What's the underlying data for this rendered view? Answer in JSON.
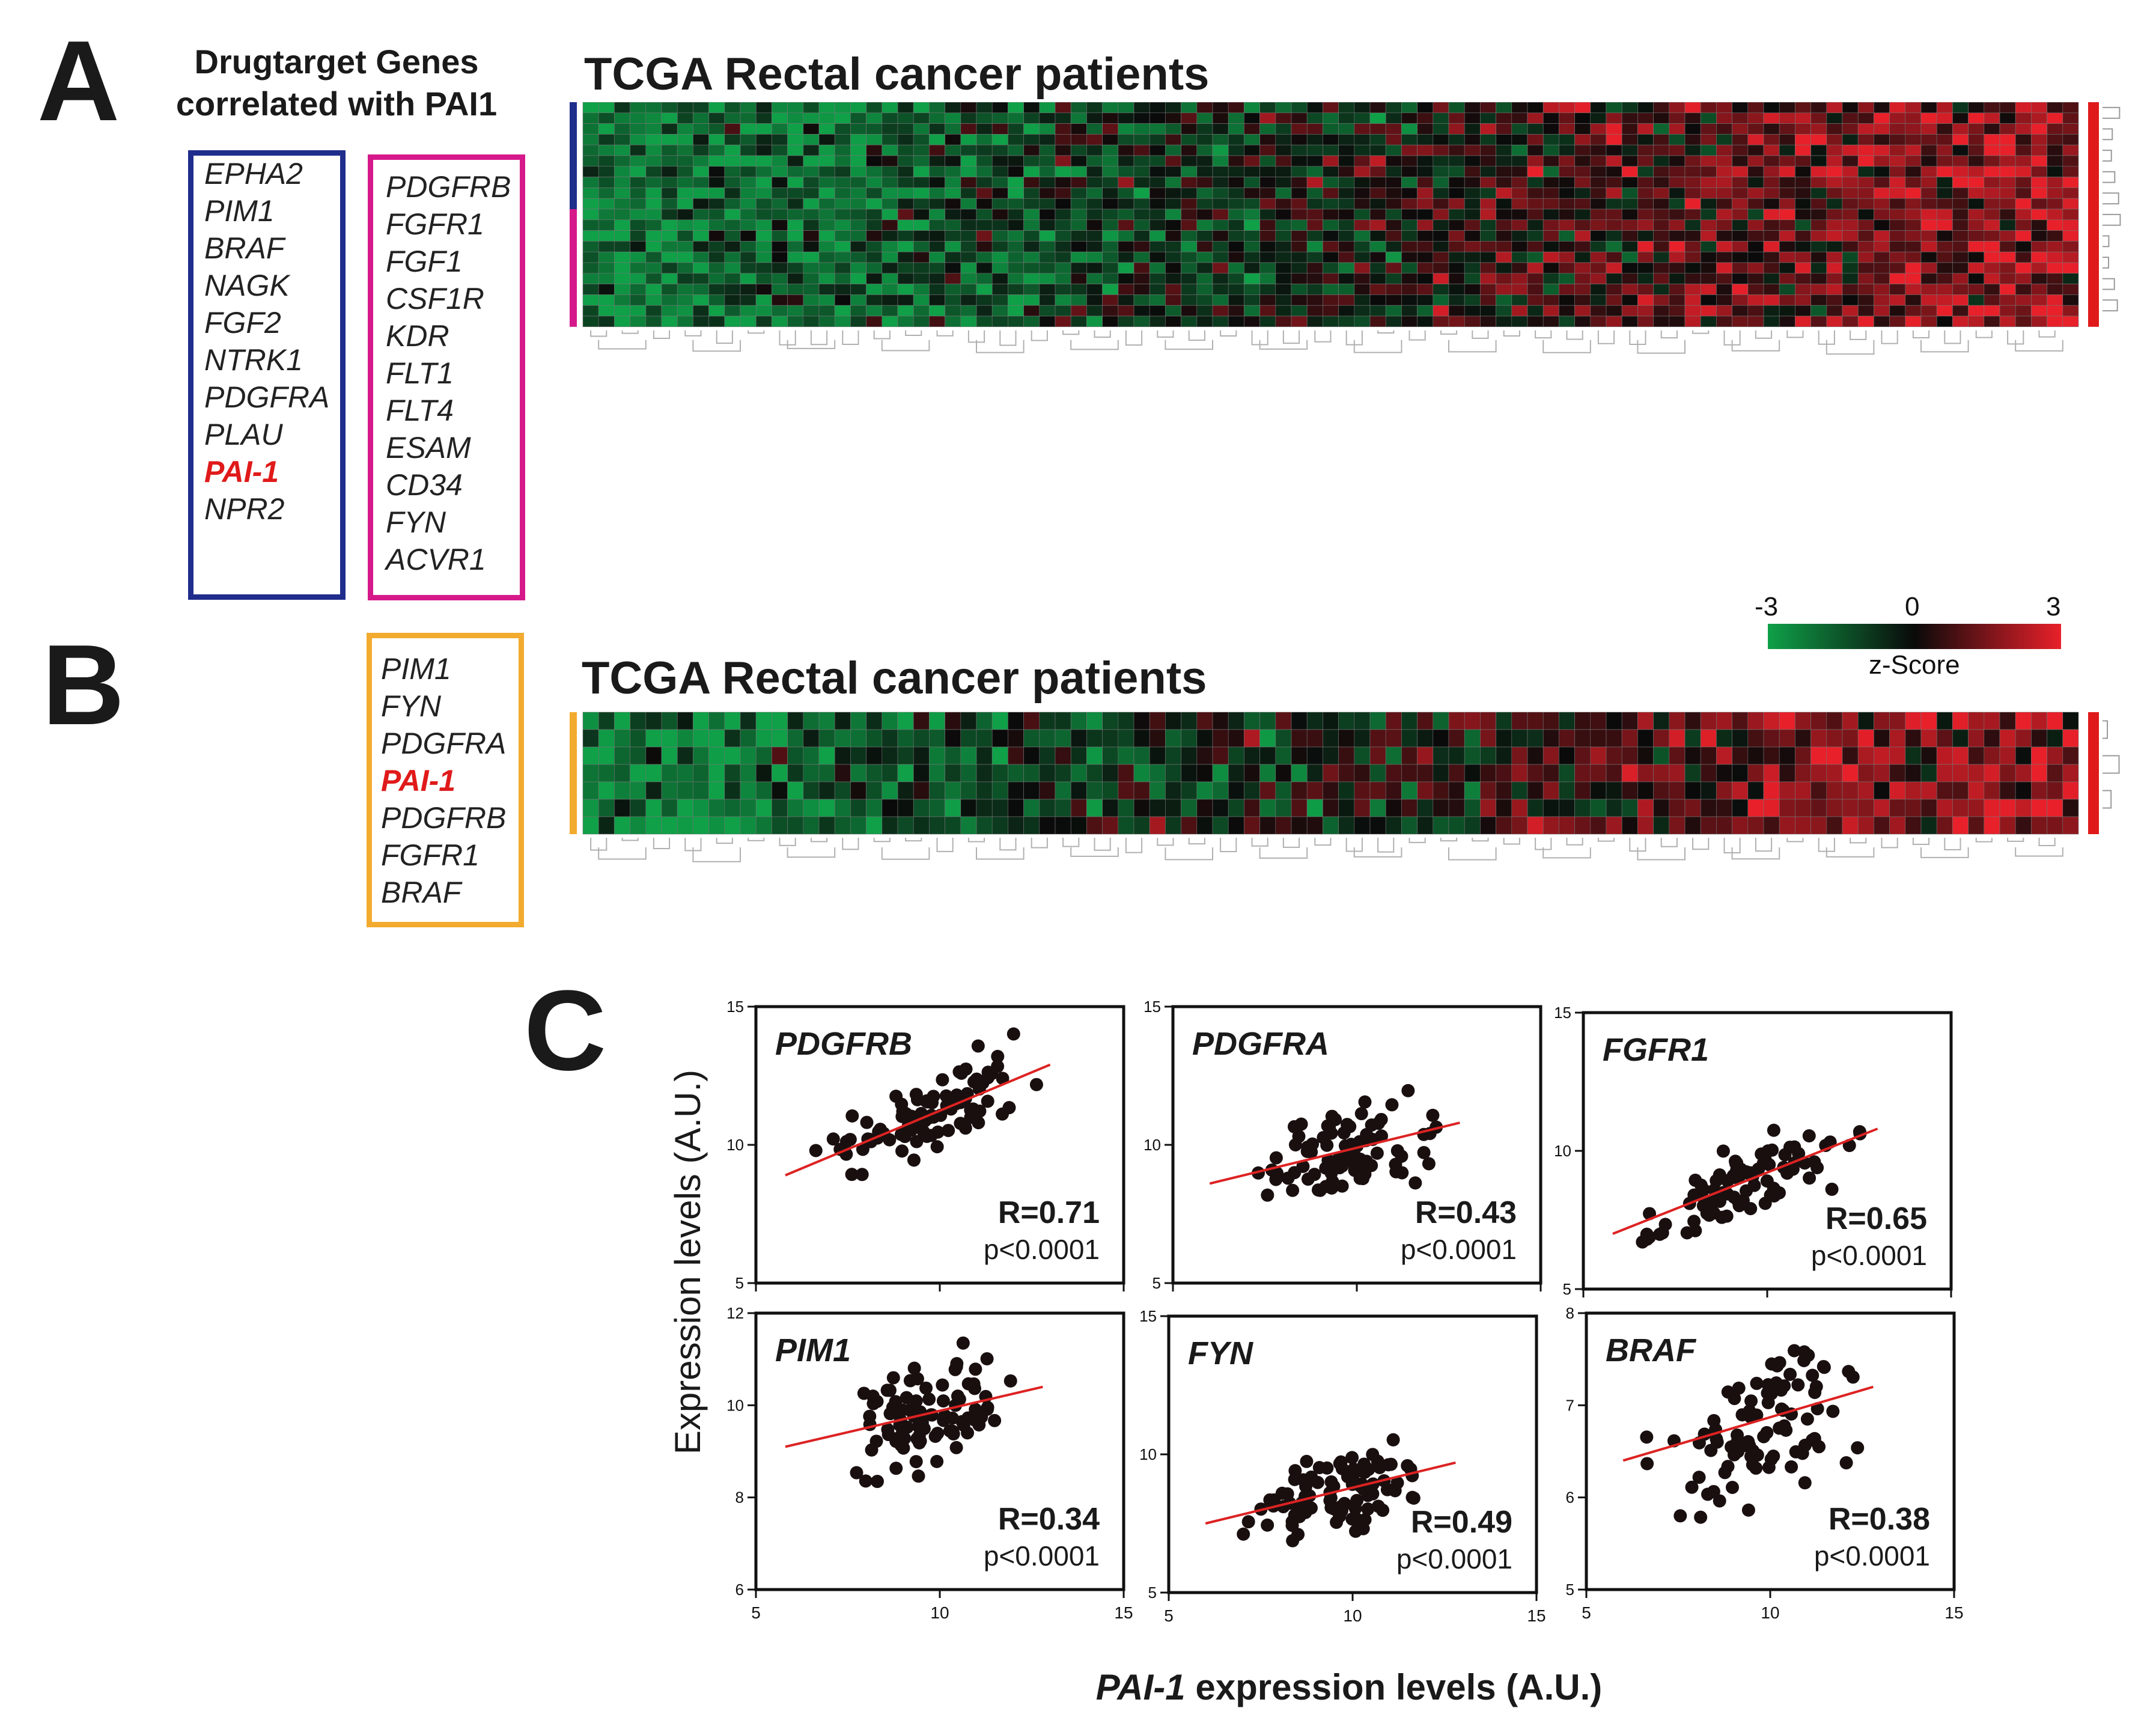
{
  "panelA": {
    "letter": "A",
    "header_line1": "Drugtarget Genes",
    "header_line2": "correlated  with PAI1",
    "blue_genes": [
      "EPHA2",
      "PIM1",
      "BRAF",
      "NAGK",
      "FGF2",
      "NTRK1",
      "PDGFRA",
      "PLAU",
      "PAI-1",
      "NPR2"
    ],
    "pink_genes": [
      "PDGFRB",
      "FGFR1",
      "FGF1",
      "CSF1R",
      "KDR",
      "FLT1",
      "FLT4",
      "ESAM",
      "CD34",
      "FYN",
      "ACVR1"
    ],
    "highlight_gene": "PAI-1",
    "heatmap_title": "TCGA Rectal cancer patients"
  },
  "panelB": {
    "letter": "B",
    "genes": [
      "PIM1",
      "FYN",
      "PDGFRA",
      "PAI-1",
      "PDGFRB",
      "FGFR1",
      "BRAF"
    ],
    "heatmap_title": "TCGA Rectal cancer patients"
  },
  "colorbar": {
    "min_label": "-3",
    "mid_label": "0",
    "max_label": "3",
    "title": "z-Score"
  },
  "colors": {
    "blue": "#1f2d8c",
    "pink": "#d6198a",
    "orange": "#f2ab2e",
    "red": "#e01a1a",
    "heat_low": "#0fa048",
    "heat_mid": "#0a0a0a",
    "heat_high": "#e8202a",
    "fit_line": "#dd2222"
  },
  "panelC": {
    "letter": "C",
    "ylabel": "Expression levels (A.U.)",
    "xlabel_gene": "PAI-1",
    "xlabel_rest": " expression levels (A.U.)"
  },
  "chart_data": [
    {
      "type": "scatter",
      "title": "PDGFRB",
      "xlabel": "PAI-1 expression levels (A.U.)",
      "ylabel": "Expression levels (A.U.)",
      "xlim": [
        5,
        15
      ],
      "ylim": [
        5,
        15
      ],
      "xticks": [
        5,
        10,
        15
      ],
      "yticks": [
        5,
        10,
        15
      ],
      "r_label": "R=0.71",
      "p_label": "p<0.0001",
      "fit": {
        "x": [
          5.8,
          13.0
        ],
        "y": [
          8.9,
          12.9
        ]
      },
      "n": 90,
      "x_center": 9.8,
      "x_spread": 1.7,
      "y_noise": 0.85
    },
    {
      "type": "scatter",
      "title": "PDGFRA",
      "xlabel": "PAI-1 expression levels (A.U.)",
      "ylabel": "Expression levels (A.U.)",
      "xlim": [
        5,
        15
      ],
      "ylim": [
        5,
        15
      ],
      "xticks": [
        5,
        10,
        15
      ],
      "yticks": [
        5,
        10,
        15
      ],
      "r_label": "R=0.43",
      "p_label": "p<0.0001",
      "fit": {
        "x": [
          6.0,
          12.8
        ],
        "y": [
          8.6,
          10.8
        ]
      },
      "n": 90,
      "x_center": 9.6,
      "x_spread": 1.6,
      "y_noise": 1.0
    },
    {
      "type": "scatter",
      "title": "FGFR1",
      "xlabel": "PAI-1 expression levels (A.U.)",
      "ylabel": "Expression levels (A.U.)",
      "xlim": [
        5,
        15
      ],
      "ylim": [
        5,
        15
      ],
      "xticks": [
        5,
        10,
        15
      ],
      "yticks": [
        5,
        10,
        15
      ],
      "r_label": "R=0.65",
      "p_label": "p<0.0001",
      "fit": {
        "x": [
          5.8,
          13.0
        ],
        "y": [
          7.0,
          10.8
        ]
      },
      "n": 90,
      "x_center": 9.6,
      "x_spread": 1.7,
      "y_noise": 0.9
    },
    {
      "type": "scatter",
      "title": "PIM1",
      "xlabel": "PAI-1 expression levels (A.U.)",
      "ylabel": "Expression levels (A.U.)",
      "xlim": [
        5,
        15
      ],
      "ylim": [
        6,
        12
      ],
      "xticks": [
        5,
        10,
        15
      ],
      "yticks": [
        6,
        8,
        10,
        12
      ],
      "r_label": "R=0.34",
      "p_label": "p<0.0001",
      "fit": {
        "x": [
          5.8,
          12.8
        ],
        "y": [
          9.1,
          10.4
        ]
      },
      "n": 90,
      "x_center": 9.6,
      "x_spread": 1.6,
      "y_noise": 0.8
    },
    {
      "type": "scatter",
      "title": "FYN",
      "xlabel": "PAI-1 expression levels (A.U.)",
      "ylabel": "Expression levels (A.U.)",
      "xlim": [
        5,
        15
      ],
      "ylim": [
        5,
        15
      ],
      "xticks": [
        5,
        10,
        15
      ],
      "yticks": [
        5,
        10,
        15
      ],
      "r_label": "R=0.49",
      "p_label": "p<0.0001",
      "fit": {
        "x": [
          6.0,
          12.8
        ],
        "y": [
          7.5,
          9.7
        ]
      },
      "n": 90,
      "x_center": 9.4,
      "x_spread": 1.6,
      "y_noise": 0.9
    },
    {
      "type": "scatter",
      "title": "BRAF",
      "xlabel": "PAI-1 expression levels (A.U.)",
      "ylabel": "Expression levels (A.U.)",
      "xlim": [
        5,
        15
      ],
      "ylim": [
        5,
        8
      ],
      "xticks": [
        5,
        10,
        15
      ],
      "yticks": [
        5,
        6,
        7,
        8
      ],
      "r_label": "R=0.38",
      "p_label": "p<0.0001",
      "fit": {
        "x": [
          6.0,
          12.8
        ],
        "y": [
          6.4,
          7.2
        ]
      },
      "n": 90,
      "x_center": 9.6,
      "x_spread": 1.6,
      "y_noise": 0.45
    }
  ]
}
